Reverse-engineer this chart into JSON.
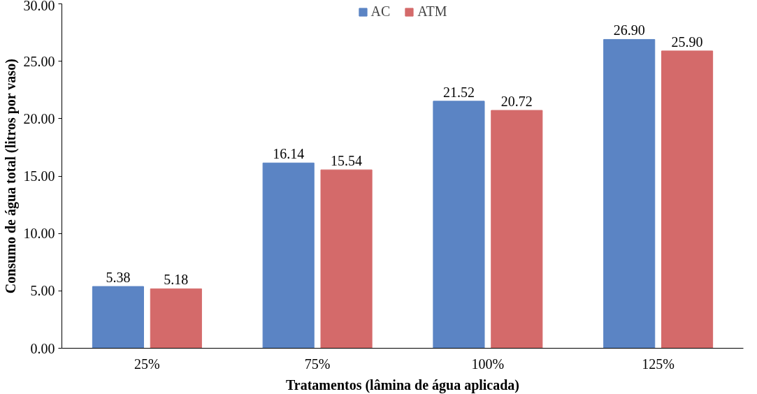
{
  "chart_data": {
    "type": "bar",
    "xlabel": "Tratamentos (lâmina de água aplicada)",
    "ylabel": "Consumo de água total (litros por vaso)",
    "categories": [
      "25%",
      "75%",
      "100%",
      "125%"
    ],
    "series": [
      {
        "name": "AC",
        "color": "#5b84c4",
        "values": [
          5.38,
          16.14,
          21.52,
          26.9
        ],
        "value_labels": [
          "5.38",
          "16.14",
          "21.52",
          "26.90"
        ]
      },
      {
        "name": "ATM",
        "color": "#d46a6a",
        "values": [
          5.18,
          15.54,
          20.72,
          25.9
        ],
        "value_labels": [
          "5.18",
          "15.54",
          "20.72",
          "25.90"
        ]
      }
    ],
    "ylim": [
      0,
      30
    ],
    "yticks": [
      {
        "value": 0,
        "label": "0.00"
      },
      {
        "value": 5,
        "label": "5.00"
      },
      {
        "value": 10,
        "label": "10.00"
      },
      {
        "value": 15,
        "label": "15.00"
      },
      {
        "value": 20,
        "label": "20.00"
      },
      {
        "value": 25,
        "label": "25.00"
      },
      {
        "value": 30,
        "label": "30.00"
      }
    ],
    "grid": false,
    "legend": "top"
  }
}
